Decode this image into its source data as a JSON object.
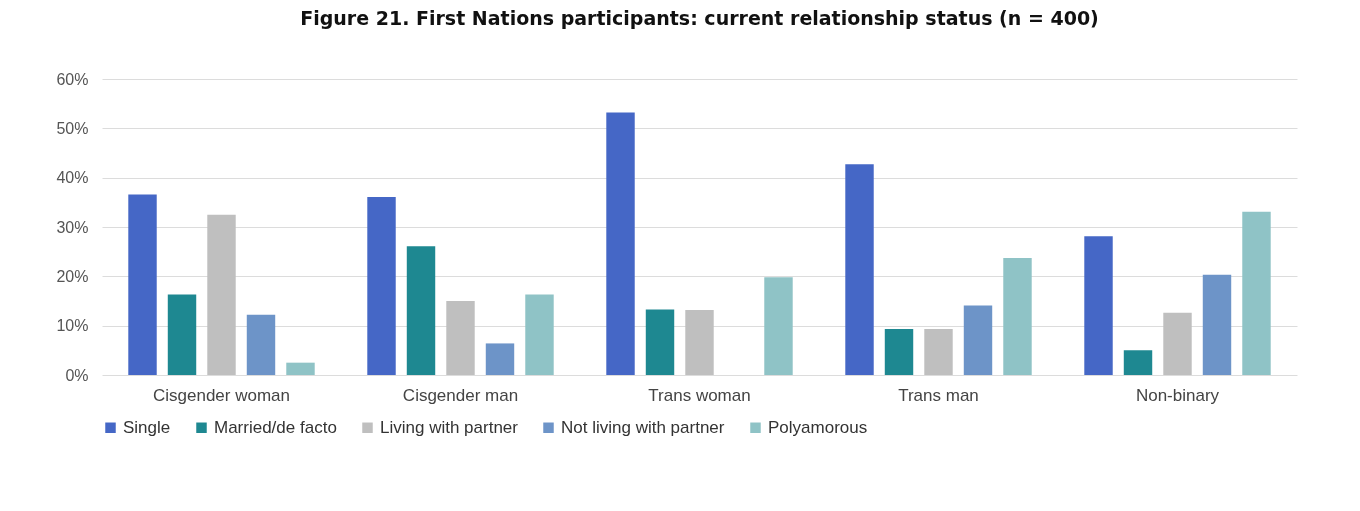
{
  "chart_data": {
    "type": "bar",
    "title": "Figure 21. First Nations participants: current relationship status (n = 400)",
    "categories": [
      "Cisgender woman",
      "Cisgender man",
      "Trans woman",
      "Trans man",
      "Non-binary"
    ],
    "series": [
      {
        "name": "Single",
        "color": "#4567c6",
        "values": [
          36.6,
          36.1,
          53.2,
          42.7,
          28.1
        ]
      },
      {
        "name": "Married/de facto",
        "color": "#1e8891",
        "values": [
          16.3,
          26.1,
          13.3,
          9.3,
          5.0
        ]
      },
      {
        "name": "Living with partner",
        "color": "#bfbfbf",
        "values": [
          32.5,
          15.0,
          13.2,
          9.3,
          12.6
        ]
      },
      {
        "name": "Not living with partner",
        "color": "#6d94c8",
        "values": [
          12.2,
          6.4,
          0,
          14.1,
          20.3
        ]
      },
      {
        "name": "Polyamorous",
        "color": "#8fc3c6",
        "values": [
          2.5,
          16.3,
          19.8,
          23.7,
          33.1
        ]
      }
    ],
    "ylim": [
      0,
      60
    ],
    "yticks": [
      {
        "value": 0,
        "label": "0%"
      },
      {
        "value": 10,
        "label": "10%"
      },
      {
        "value": 20,
        "label": "20%"
      },
      {
        "value": 30,
        "label": "30%"
      },
      {
        "value": 40,
        "label": "40%"
      },
      {
        "value": 50,
        "label": "50%"
      },
      {
        "value": 60,
        "label": "60%"
      }
    ],
    "grid": "y",
    "legend": "bottom"
  }
}
